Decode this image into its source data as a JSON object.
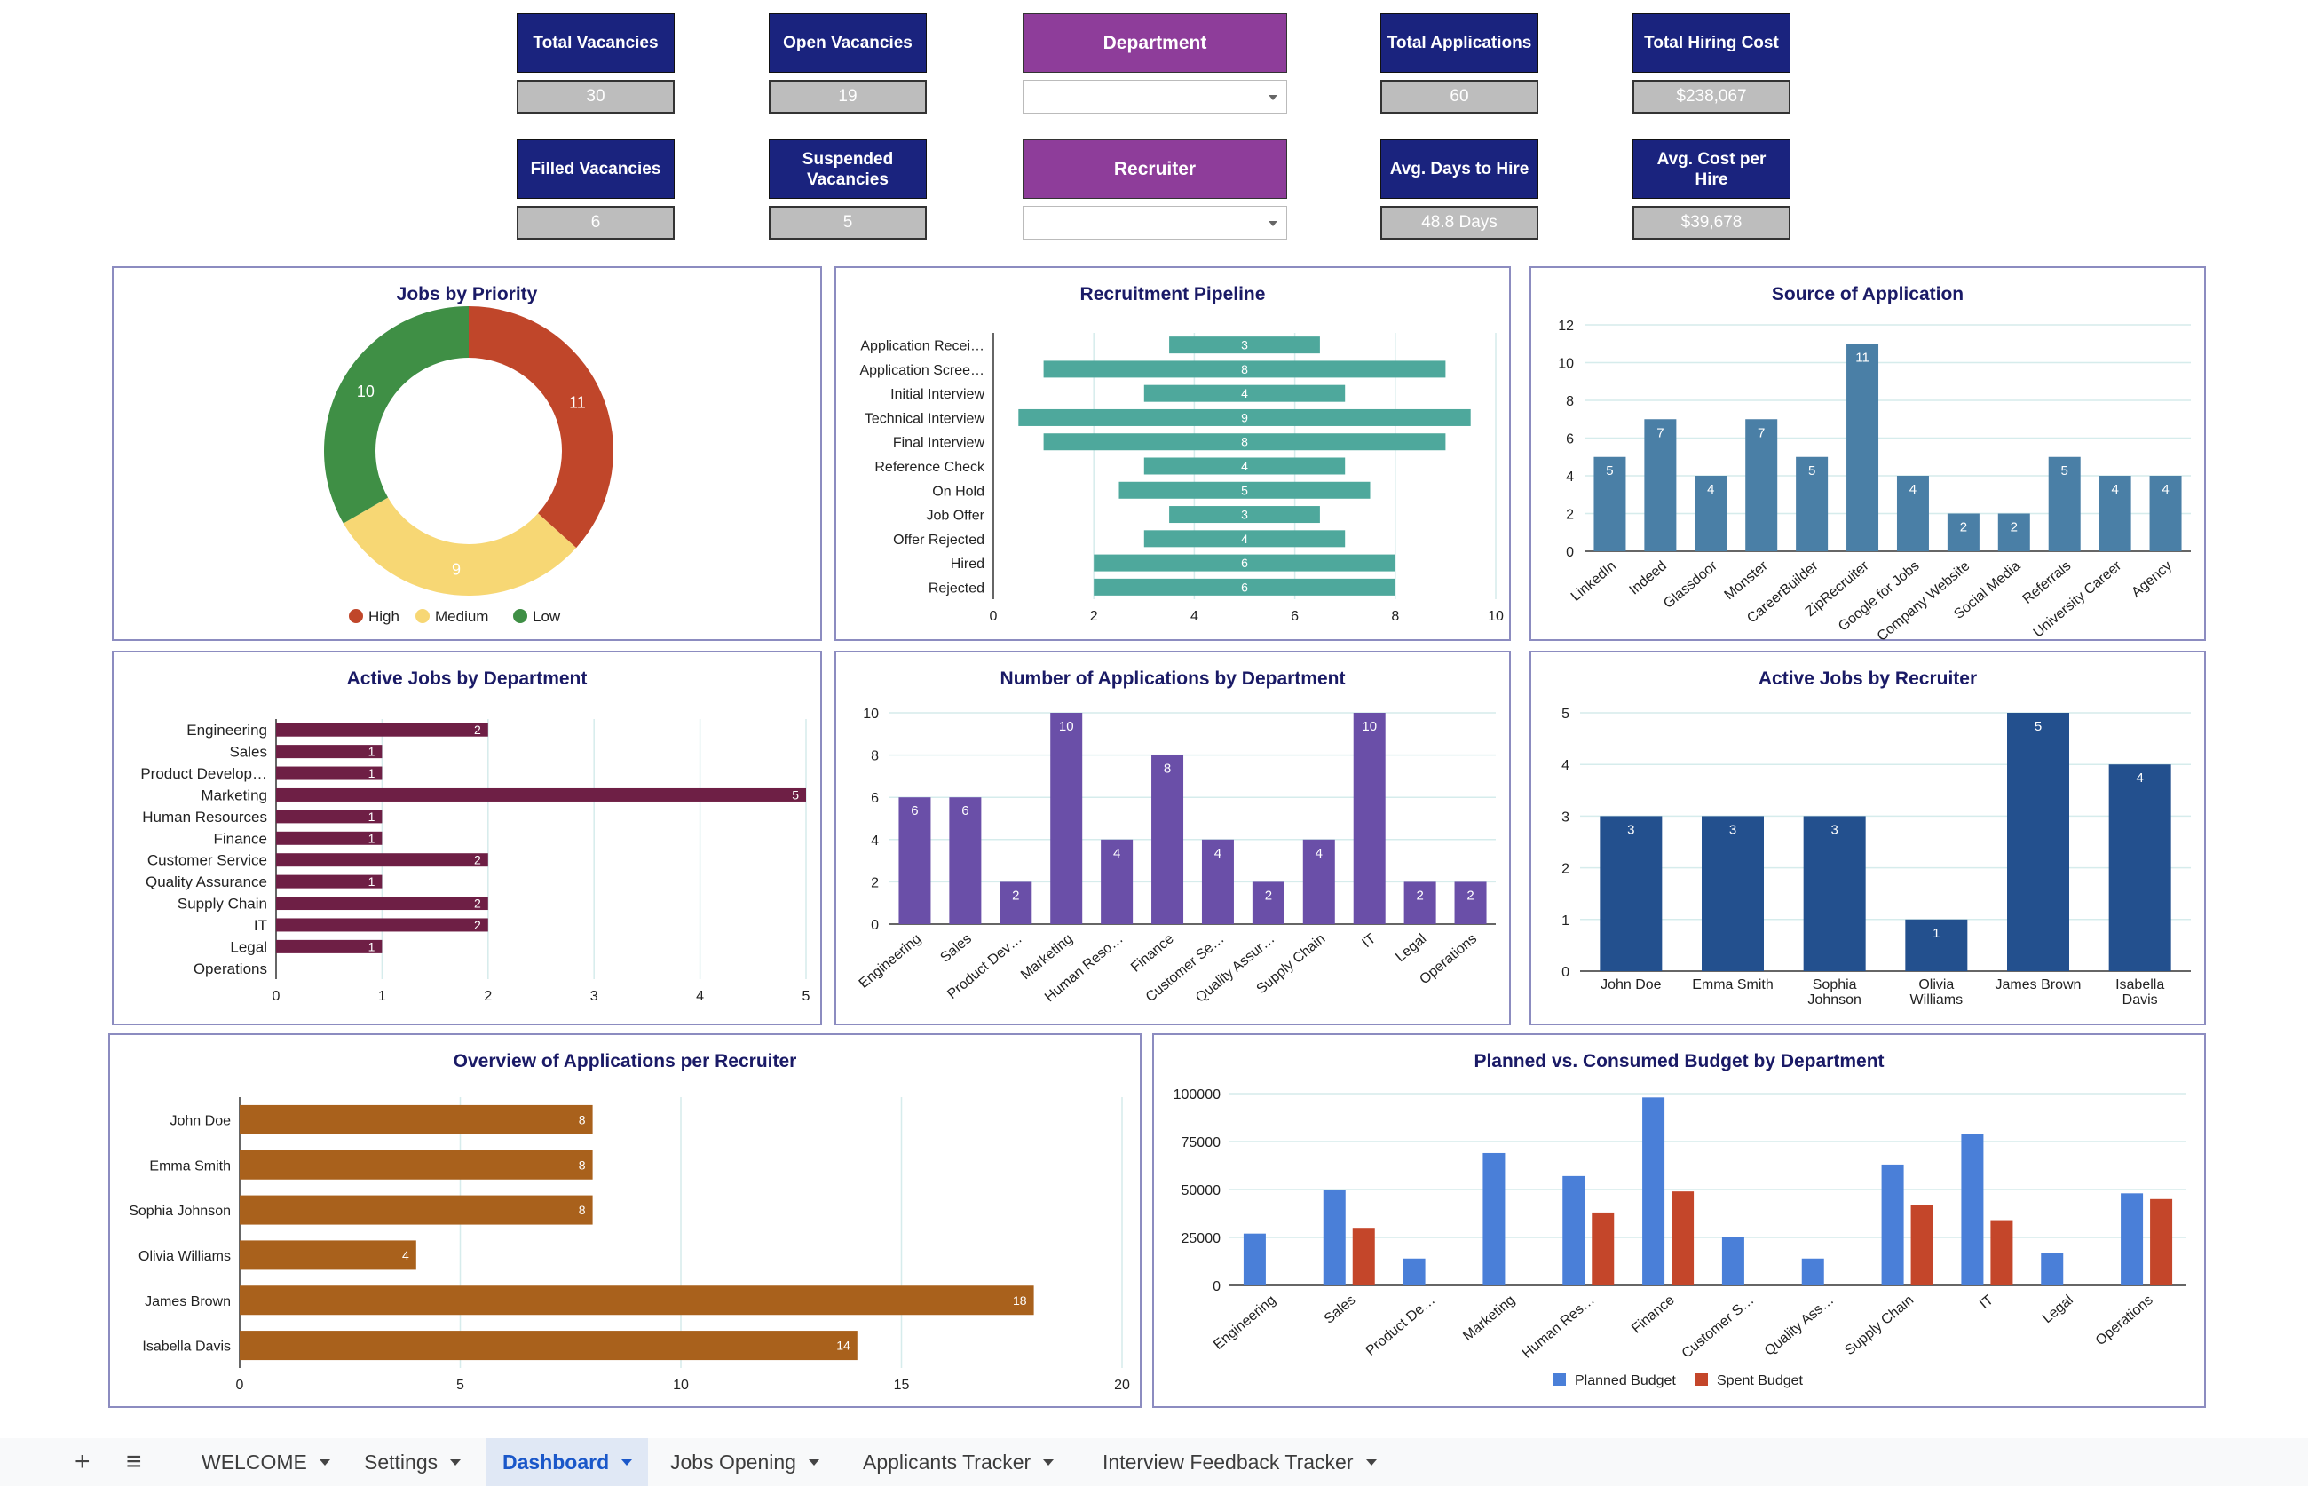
{
  "kpis": {
    "total_vacancies": {
      "label": "Total Vacancies",
      "value": "30"
    },
    "open_vacancies": {
      "label": "Open Vacancies",
      "value": "19"
    },
    "total_applications": {
      "label": "Total Applications",
      "value": "60"
    },
    "total_hiring_cost": {
      "label": "Total Hiring Cost",
      "value": "$238,067"
    },
    "filled_vacancies": {
      "label": "Filled Vacancies",
      "value": "6"
    },
    "suspended_vacancies": {
      "label": "Suspended Vacancies",
      "value": "5"
    },
    "avg_days_to_hire": {
      "label": "Avg. Days to Hire",
      "value": "48.8 Days"
    },
    "avg_cost_per_hire": {
      "label": "Avg. Cost per Hire",
      "value": "$39,678"
    }
  },
  "filters": {
    "department": {
      "label": "Department",
      "value": ""
    },
    "recruiter": {
      "label": "Recruiter",
      "value": ""
    }
  },
  "colors": {
    "kpi_header": "#1a237e",
    "filter_header": "#8e3d9a",
    "priority_high": "#c0462a",
    "priority_medium": "#f7d774",
    "priority_low": "#3f8f45",
    "pipeline": "#4ea89c",
    "source": "#4a7fa6",
    "active_dept": "#6e1f45",
    "apps_dept": "#6a4fa8",
    "recruiter_jobs": "#23508e",
    "apps_recruiter": "#a9611c",
    "planned": "#4a7fd8",
    "spent": "#c4462a"
  },
  "chart_data": [
    {
      "id": "jobs_by_priority",
      "type": "pie",
      "title": "Jobs by Priority",
      "donut": true,
      "labels": [
        "High",
        "Medium",
        "Low"
      ],
      "values": [
        11,
        9,
        10
      ],
      "legend": "bottom"
    },
    {
      "id": "recruitment_pipeline",
      "type": "bar",
      "orientation": "horizontal",
      "title": "Recruitment Pipeline",
      "categories": [
        "Application Recei…",
        "Application Scree…",
        "Initial Interview",
        "Technical Interview",
        "Final Interview",
        "Reference Check",
        "On Hold",
        "Job Offer",
        "Offer Rejected",
        "Hired",
        "Rejected"
      ],
      "values": [
        3,
        8,
        4,
        9,
        8,
        4,
        5,
        3,
        4,
        6,
        6
      ],
      "xlim": [
        0,
        10
      ],
      "xticks": [
        "0",
        "2",
        "4",
        "6",
        "8",
        "10"
      ],
      "centered": true
    },
    {
      "id": "source_of_application",
      "type": "bar",
      "title": "Source of Application",
      "categories": [
        "LinkedIn",
        "Indeed",
        "Glassdoor",
        "Monster",
        "CareerBuilder",
        "ZipRecruiter",
        "Google for Jobs",
        "Company Website",
        "Social Media",
        "Referrals",
        "University Career",
        "Agency"
      ],
      "values": [
        5,
        7,
        4,
        7,
        5,
        11,
        4,
        2,
        2,
        5,
        4,
        4
      ],
      "ylim": [
        0,
        12
      ],
      "yticks": [
        "0",
        "2",
        "4",
        "6",
        "8",
        "10",
        "12"
      ]
    },
    {
      "id": "active_jobs_by_department",
      "type": "bar",
      "orientation": "horizontal",
      "title": "Active Jobs by Department",
      "categories": [
        "Engineering",
        "Sales",
        "Product Develop…",
        "Marketing",
        "Human Resources",
        "Finance",
        "Customer Service",
        "Quality Assurance",
        "Supply Chain",
        "IT",
        "Legal",
        "Operations"
      ],
      "values": [
        2,
        1,
        1,
        5,
        1,
        1,
        2,
        1,
        2,
        2,
        1,
        0
      ],
      "xlim": [
        0,
        5
      ],
      "xticks": [
        "0",
        "1",
        "2",
        "3",
        "4",
        "5"
      ]
    },
    {
      "id": "applications_by_department",
      "type": "bar",
      "title": "Number of Applications by Department",
      "categories": [
        "Engineering",
        "Sales",
        "Product Dev…",
        "Marketing",
        "Human Reso…",
        "Finance",
        "Customer Se…",
        "Quality Assur…",
        "Supply Chain",
        "IT",
        "Legal",
        "Operations"
      ],
      "values": [
        6,
        6,
        2,
        10,
        4,
        8,
        4,
        2,
        4,
        10,
        2,
        2
      ],
      "ylim": [
        0,
        10
      ],
      "yticks": [
        "0",
        "2",
        "4",
        "6",
        "8",
        "10"
      ]
    },
    {
      "id": "active_jobs_by_recruiter",
      "type": "bar",
      "title": "Active Jobs by Recruiter",
      "categories": [
        "John Doe",
        "Emma Smith",
        "Sophia Johnson",
        "Olivia Williams",
        "James Brown",
        "Isabella Davis"
      ],
      "values": [
        3,
        3,
        3,
        1,
        5,
        4
      ],
      "ylim": [
        0,
        5
      ],
      "yticks": [
        "0",
        "1",
        "2",
        "3",
        "4",
        "5"
      ]
    },
    {
      "id": "applications_per_recruiter",
      "type": "bar",
      "orientation": "horizontal",
      "title": "Overview of Applications per Recruiter",
      "categories": [
        "John Doe",
        "Emma Smith",
        "Sophia Johnson",
        "Olivia Williams",
        "James Brown",
        "Isabella Davis"
      ],
      "values": [
        8,
        8,
        8,
        4,
        18,
        14
      ],
      "xlim": [
        0,
        20
      ],
      "xticks": [
        "0",
        "5",
        "10",
        "15",
        "20"
      ]
    },
    {
      "id": "budget_by_department",
      "type": "bar",
      "title": "Planned vs. Consumed Budget by Department",
      "categories": [
        "Engineering",
        "Sales",
        "Product De…",
        "Marketing",
        "Human Res…",
        "Finance",
        "Customer S…",
        "Quality Ass…",
        "Supply Chain",
        "IT",
        "Legal",
        "Operations"
      ],
      "series": [
        {
          "name": "Planned Budget",
          "values": [
            27000,
            50000,
            14000,
            69000,
            57000,
            98000,
            25000,
            14000,
            63000,
            79000,
            17000,
            48000
          ]
        },
        {
          "name": "Spent Budget",
          "values": [
            0,
            30000,
            0,
            0,
            38000,
            49000,
            0,
            0,
            42000,
            34000,
            0,
            45000
          ]
        }
      ],
      "ylim": [
        0,
        100000
      ],
      "yticks": [
        "0",
        "25000",
        "50000",
        "75000",
        "100000"
      ],
      "legend": "bottom"
    }
  ],
  "tabs": {
    "add_label": "+",
    "menu_label": "≡",
    "items": [
      {
        "label": "WELCOME",
        "active": false
      },
      {
        "label": "Settings",
        "active": false
      },
      {
        "label": "Dashboard",
        "active": true
      },
      {
        "label": "Jobs Opening",
        "active": false
      },
      {
        "label": "Applicants Tracker",
        "active": false
      },
      {
        "label": "Interview Feedback Tracker",
        "active": false
      }
    ]
  }
}
